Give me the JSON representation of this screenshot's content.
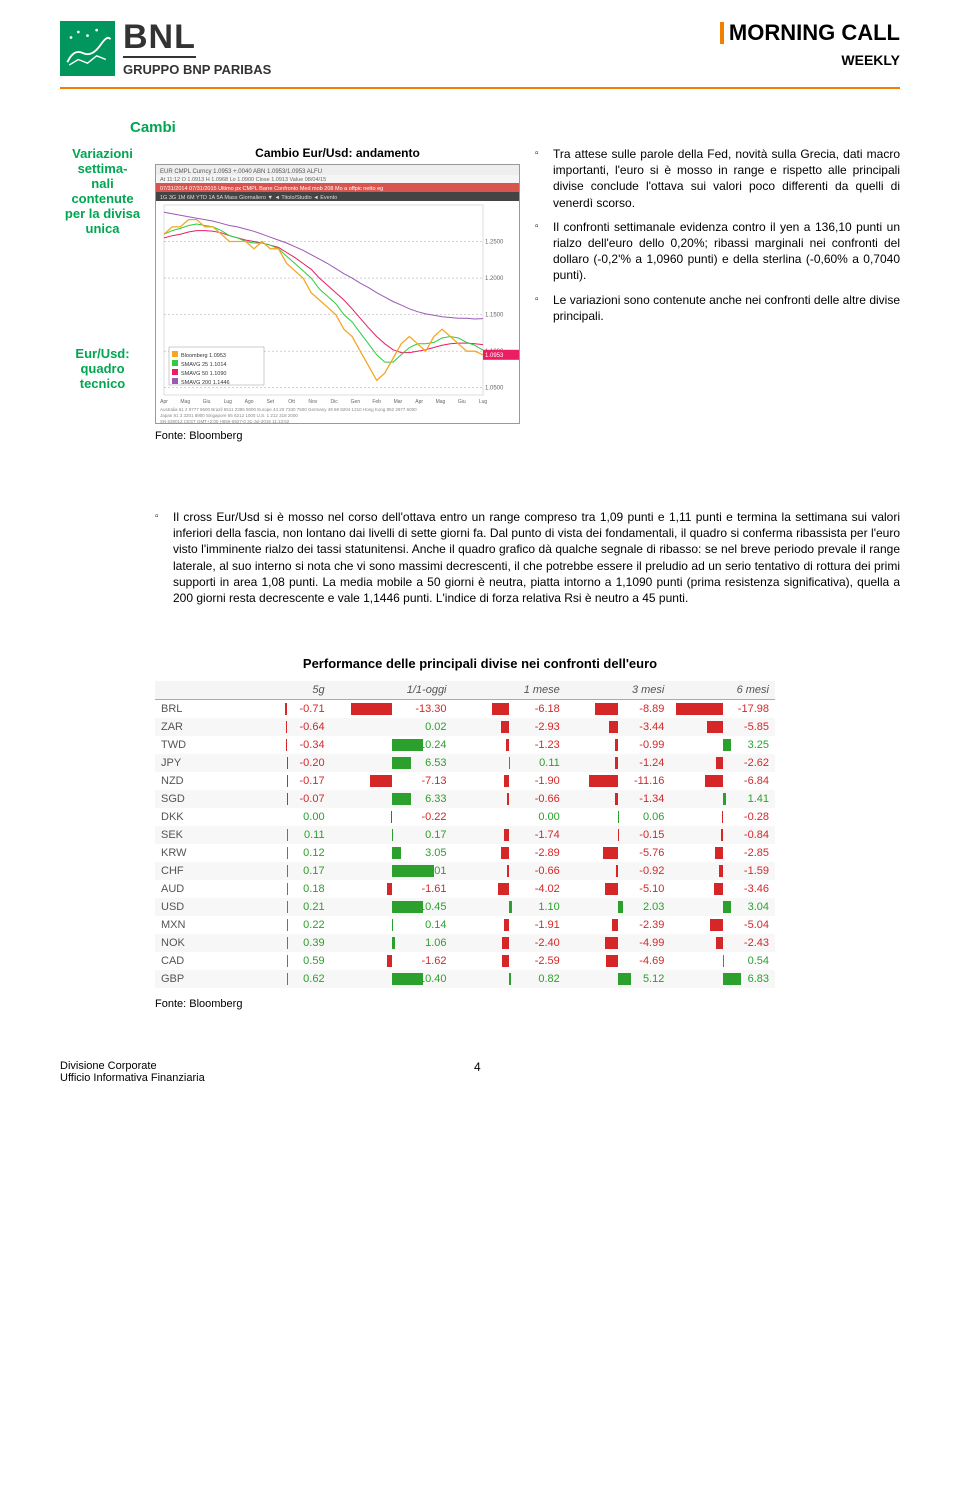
{
  "header": {
    "logo_bnl": "BNL",
    "logo_gruppo": "GRUPPO BNP PARIBAS",
    "morning_call": "MORNING CALL",
    "weekly": "WEEKLY"
  },
  "section": {
    "title": "Cambi"
  },
  "sidebar": {
    "label1": "Variazioni settima-\nnali contenute per la divisa unica",
    "label2": "Eur/Usd: quadro tecnico"
  },
  "chart": {
    "title": "Cambio Eur/Usd: andamento",
    "source": "Fonte: Bloomberg",
    "ticker_line": "EUR CMPL Curncy   1.0953  +.0040   ABN  1.0953/1.0953  ALFU",
    "info_line": "At 11:12  O 1.0913  H 1.0968  Lo 1.0900  Close 1.0913  Value 08/04/15",
    "toolbar": "07/31/2014  07/31/2015  Ultimo px   CMPL   Barre   Confronto Med mob   208   Mo a offpic netto   eg",
    "tabs": "1G 3G 1M 6M YTD 1A 5A Mass   Giornaliero ▼   ◄   Titolo/Studio  ◄   Evento",
    "ylim": [
      1.04,
      1.3
    ],
    "gridlines": [
      1.05,
      1.1,
      1.15,
      1.2,
      1.25
    ],
    "ma_labels": "Bloomberg   1.0953\nSMAVG 25   1.1014\nSMAVG 50   1.1090\nSMAVG 200  1.1446",
    "line_data": [
      1.26,
      1.27,
      1.27,
      1.28,
      1.28,
      1.27,
      1.27,
      1.26,
      1.25,
      1.25,
      1.25,
      1.24,
      1.25,
      1.24,
      1.24,
      1.22,
      1.21,
      1.2,
      1.18,
      1.17,
      1.16,
      1.15,
      1.13,
      1.12,
      1.1,
      1.08,
      1.06,
      1.07,
      1.09,
      1.11,
      1.12,
      1.11,
      1.1,
      1.12,
      1.13,
      1.12,
      1.11,
      1.1,
      1.1,
      1.095
    ],
    "ma25_data": [
      1.26,
      1.265,
      1.268,
      1.272,
      1.274,
      1.272,
      1.27,
      1.265,
      1.258,
      1.255,
      1.25,
      1.248,
      1.248,
      1.245,
      1.24,
      1.23,
      1.22,
      1.21,
      1.2,
      1.185,
      1.175,
      1.165,
      1.15,
      1.14,
      1.125,
      1.11,
      1.095,
      1.085,
      1.085,
      1.095,
      1.105,
      1.11,
      1.11,
      1.112,
      1.118,
      1.12,
      1.118,
      1.112,
      1.108,
      1.1014
    ],
    "ma50_data": [
      1.255,
      1.258,
      1.26,
      1.263,
      1.265,
      1.265,
      1.264,
      1.262,
      1.258,
      1.255,
      1.252,
      1.25,
      1.248,
      1.245,
      1.242,
      1.235,
      1.228,
      1.22,
      1.212,
      1.2,
      1.19,
      1.18,
      1.17,
      1.158,
      1.145,
      1.132,
      1.12,
      1.11,
      1.102,
      1.098,
      1.098,
      1.1,
      1.102,
      1.105,
      1.108,
      1.11,
      1.111,
      1.111,
      1.11,
      1.109
    ],
    "ma200_data": [
      1.29,
      1.288,
      1.286,
      1.284,
      1.282,
      1.28,
      1.278,
      1.275,
      1.272,
      1.27,
      1.267,
      1.264,
      1.26,
      1.256,
      1.252,
      1.248,
      1.243,
      1.238,
      1.232,
      1.226,
      1.22,
      1.213,
      1.206,
      1.2,
      1.193,
      1.187,
      1.18,
      1.174,
      1.168,
      1.163,
      1.158,
      1.154,
      1.151,
      1.149,
      1.147,
      1.146,
      1.145,
      1.145,
      1.144,
      1.1446
    ],
    "colors": {
      "price": "#f5a623",
      "ma25": "#2ecc40",
      "ma50": "#e91e63",
      "ma200": "#9b59b6",
      "grid": "#666666",
      "bg": "#ffffff"
    },
    "footer_line": "Australia 61 2 9777 8600 Brazil 5511 2395 9000 Europe 44 20 7330 7500 Germany 49 69 9204 1210 Hong Kong 852 2977 6000"
  },
  "bullets": {
    "b1": "Tra attese sulle parole della Fed, novità sulla Grecia, dati macro importanti, l'euro si è mosso in range e rispetto alle principali divise conclude l'ottava sui valori poco differenti da quelli di venerdì scorso.",
    "b2": "Il confronti settimanale evidenza contro il yen a 136,10 punti un rialzo dell'euro dello 0,20%; ribassi marginali nei confronti del dollaro (-0,2'% a 1,0960 punti) e della sterlina (-0,60% a 0,7040 punti).",
    "b3": "Le variazioni sono contenute anche nei confronti delle altre divise principali.",
    "b4": "Il cross Eur/Usd si è mosso nel corso dell'ottava entro un range compreso tra 1,09 punti e 1,11 punti e termina la settimana sui valori inferiori della fascia, non lontano dai livelli di sette giorni fa. Dal punto di vista dei fondamentali, il quadro si conferma ribassista per l'euro visto l'imminente rialzo dei tassi statunitensi. Anche il quadro grafico dà qualche segnale di ribasso: se nel breve periodo prevale il range laterale, al suo interno si nota che vi sono massimi decrescenti, il che potrebbe essere il preludio ad un serio tentativo di rottura dei primi supporti in area 1,08 punti. La media mobile a 50 giorni è neutra, piatta intorno a 1,1090 punti (prima resistenza significativa), quella a 200 giorni resta decrescente e vale 1,1446 punti. L'indice di forza relativa Rsi è neutro a 45 punti."
  },
  "perf": {
    "title": "Performance delle principali divise nei confronti dell'euro",
    "source": "Fonte: Bloomberg",
    "columns": [
      "",
      "5g",
      "1/1-oggi",
      "1 mese",
      "3 mesi",
      "6 mesi"
    ],
    "max_abs": 20,
    "rows": [
      {
        "c": "BRL",
        "v": [
          -0.71,
          -13.3,
          -6.18,
          -8.89,
          -17.98
        ]
      },
      {
        "c": "ZAR",
        "v": [
          -0.64,
          0.02,
          -2.93,
          -3.44,
          -5.85
        ]
      },
      {
        "c": "TWD",
        "v": [
          -0.34,
          10.24,
          -1.23,
          -0.99,
          3.25
        ]
      },
      {
        "c": "JPY",
        "v": [
          -0.2,
          6.53,
          0.11,
          -1.24,
          -2.62
        ]
      },
      {
        "c": "NZD",
        "v": [
          -0.17,
          -7.13,
          -1.9,
          -11.16,
          -6.84
        ]
      },
      {
        "c": "SGD",
        "v": [
          -0.07,
          6.33,
          -0.66,
          -1.34,
          1.41
        ]
      },
      {
        "c": "DKK",
        "v": [
          0.0,
          -0.22,
          0.0,
          0.06,
          -0.28
        ]
      },
      {
        "c": "SEK",
        "v": [
          0.11,
          0.17,
          -1.74,
          -0.15,
          -0.84
        ]
      },
      {
        "c": "KRW",
        "v": [
          0.12,
          3.05,
          -2.89,
          -5.76,
          -2.85
        ]
      },
      {
        "c": "CHF",
        "v": [
          0.17,
          14.01,
          -0.66,
          -0.92,
          -1.59
        ]
      },
      {
        "c": "AUD",
        "v": [
          0.18,
          -1.61,
          -4.02,
          -5.1,
          -3.46
        ]
      },
      {
        "c": "USD",
        "v": [
          0.21,
          10.45,
          1.1,
          2.03,
          3.04
        ]
      },
      {
        "c": "MXN",
        "v": [
          0.22,
          0.14,
          -1.91,
          -2.39,
          -5.04
        ]
      },
      {
        "c": "NOK",
        "v": [
          0.39,
          1.06,
          -2.4,
          -4.99,
          -2.43
        ]
      },
      {
        "c": "CAD",
        "v": [
          0.59,
          -1.62,
          -2.59,
          -4.69,
          0.54
        ]
      },
      {
        "c": "GBP",
        "v": [
          0.62,
          10.4,
          0.82,
          5.12,
          6.83
        ]
      }
    ]
  },
  "footer": {
    "left1": "Divisione Corporate",
    "left2": "Ufficio Informativa Finanziaria",
    "page": "4"
  }
}
